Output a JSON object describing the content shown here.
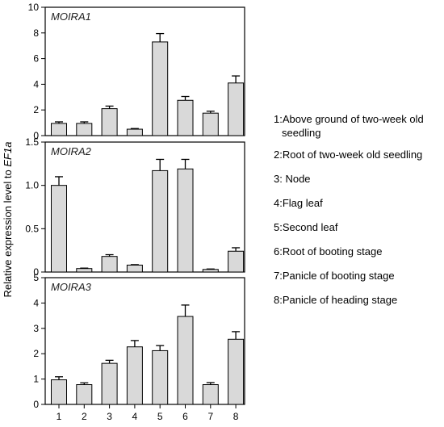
{
  "chart_data": [
    {
      "type": "bar",
      "title": "MOIRA1",
      "categories": [
        "1",
        "2",
        "3",
        "4",
        "5",
        "6",
        "7",
        "8"
      ],
      "values": [
        0.95,
        0.95,
        2.1,
        0.5,
        7.3,
        2.75,
        1.75,
        4.1
      ],
      "errors": [
        0.12,
        0.12,
        0.2,
        0.05,
        0.65,
        0.3,
        0.15,
        0.55
      ],
      "ylim": [
        0,
        10
      ],
      "yticks": [
        0,
        2,
        4,
        6,
        8,
        10
      ],
      "ytick_labels": [
        "0",
        "2",
        "4",
        "6",
        "8",
        "10"
      ],
      "show_x_labels": false
    },
    {
      "type": "bar",
      "title": "MOIRA2",
      "categories": [
        "1",
        "2",
        "3",
        "4",
        "5",
        "6",
        "7",
        "8"
      ],
      "values": [
        1.0,
        0.04,
        0.18,
        0.08,
        1.17,
        1.19,
        0.03,
        0.24
      ],
      "errors": [
        0.1,
        0.005,
        0.02,
        0.005,
        0.13,
        0.11,
        0.005,
        0.04
      ],
      "ylim": [
        0,
        1.5
      ],
      "yticks": [
        0,
        0.5,
        1.0,
        1.5
      ],
      "ytick_labels": [
        "0",
        "0.5",
        "1.0",
        "1.5"
      ],
      "show_x_labels": false
    },
    {
      "type": "bar",
      "title": "MOIRA3",
      "categories": [
        "1",
        "2",
        "3",
        "4",
        "5",
        "6",
        "7",
        "8"
      ],
      "values": [
        0.97,
        0.78,
        1.62,
        2.27,
        2.12,
        3.47,
        0.78,
        2.57
      ],
      "errors": [
        0.12,
        0.07,
        0.12,
        0.25,
        0.2,
        0.45,
        0.08,
        0.3
      ],
      "ylim": [
        0,
        5
      ],
      "yticks": [
        0,
        1,
        2,
        3,
        4,
        5
      ],
      "ytick_labels": [
        "0",
        "1",
        "2",
        "3",
        "4",
        "5"
      ],
      "show_x_labels": true
    }
  ],
  "ylabel_main": "Relative expression level to ",
  "ylabel_italic": "EF1a",
  "bar_color": "#d9d9d9",
  "legend": [
    {
      "line1": "1:Above ground of two-week old",
      "line2": "seedling"
    },
    {
      "line1": "2:Root of two-week old seedling",
      "line2": ""
    },
    {
      "line1": "3: Node",
      "line2": ""
    },
    {
      "line1": "4:Flag leaf",
      "line2": ""
    },
    {
      "line1": "5:Second leaf",
      "line2": ""
    },
    {
      "line1": "6:Root of booting stage",
      "line2": ""
    },
    {
      "line1": "7:Panicle of booting stage",
      "line2": ""
    },
    {
      "line1": "8:Panicle of heading stage",
      "line2": ""
    }
  ]
}
